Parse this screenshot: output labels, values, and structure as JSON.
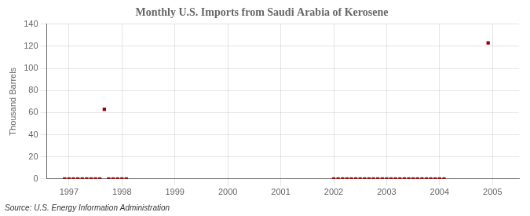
{
  "chart_data": {
    "type": "scatter",
    "title": "Monthly U.S. Imports from Saudi Arabia of Kerosene",
    "ylabel": "Thousand Barrels",
    "source": "Source: U.S. Energy Information Administration",
    "color": "#990000",
    "marker": "square",
    "grid": true,
    "xlim": [
      1996.58,
      2005.5
    ],
    "xticks": [
      1997,
      1998,
      1999,
      2000,
      2001,
      2002,
      2003,
      2004,
      2005
    ],
    "ylim": [
      0,
      140
    ],
    "yticks": [
      0,
      20,
      40,
      60,
      80,
      100,
      120,
      140
    ],
    "x": [
      1996.917,
      1997.0,
      1997.083,
      1997.167,
      1997.25,
      1997.333,
      1997.417,
      1997.5,
      1997.583,
      1997.667,
      1997.75,
      1997.833,
      1997.917,
      1998.0,
      1998.083,
      2002.0,
      2002.083,
      2002.167,
      2002.25,
      2002.333,
      2002.417,
      2002.5,
      2002.583,
      2002.667,
      2002.75,
      2002.833,
      2002.917,
      2003.0,
      2003.083,
      2003.167,
      2003.25,
      2003.333,
      2003.417,
      2003.5,
      2003.583,
      2003.667,
      2003.75,
      2003.833,
      2003.917,
      2004.0,
      2004.083,
      2004.917
    ],
    "values": [
      0,
      0,
      0,
      0,
      0,
      0,
      0,
      0,
      0,
      63,
      0,
      0,
      0,
      0,
      0,
      0,
      0,
      0,
      0,
      0,
      0,
      0,
      0,
      0,
      0,
      0,
      0,
      0,
      0,
      0,
      0,
      0,
      0,
      0,
      0,
      0,
      0,
      0,
      0,
      0,
      0,
      123
    ]
  }
}
